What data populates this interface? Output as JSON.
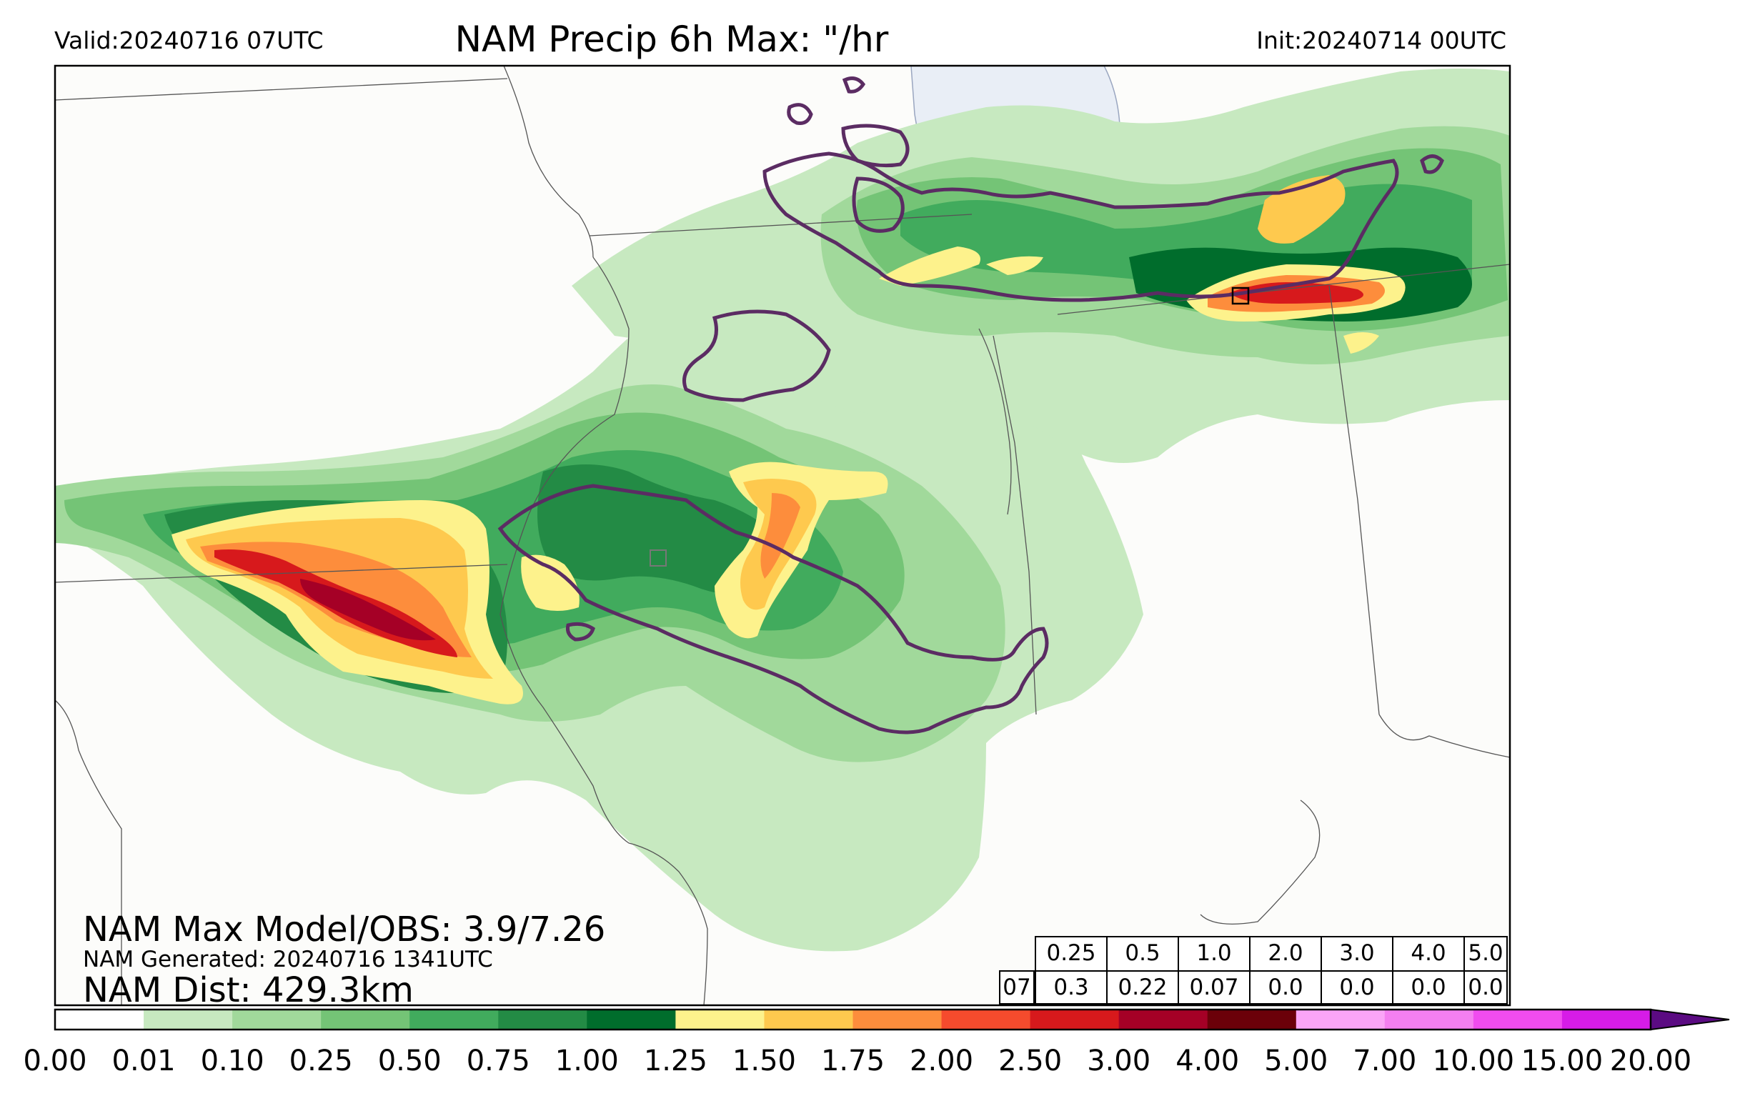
{
  "header": {
    "valid": "Valid:20240716 07UTC",
    "title": "NAM Precip 6h Max: \"/hr",
    "init": "Init:20240714 00UTC"
  },
  "info": {
    "max_model_obs": "NAM Max Model/OBS: 3.9/7.26",
    "generated": "NAM Generated: 20240716 1341UTC",
    "dist": "NAM Dist: 429.3km"
  },
  "threshold_table": {
    "hour": "07",
    "thresholds": [
      "0.25",
      "0.5",
      "1.0",
      "2.0",
      "3.0",
      "4.0",
      "5.0"
    ],
    "values": [
      "0.3",
      "0.22",
      "0.07",
      "0.0",
      "0.0",
      "0.0",
      "0.0"
    ]
  },
  "colorbar": {
    "ticks": [
      "0.00",
      "0.01",
      "0.10",
      "0.25",
      "0.50",
      "0.75",
      "1.00",
      "1.25",
      "1.50",
      "1.75",
      "2.00",
      "2.50",
      "3.00",
      "4.00",
      "5.00",
      "7.00",
      "10.00",
      "15.00",
      "20.00"
    ],
    "colors": [
      "#ffffff",
      "#c7e9c0",
      "#a1d99b",
      "#74c476",
      "#41ab5d",
      "#238b45",
      "#006d2c",
      "#fdf28c",
      "#fec94e",
      "#fd8d3c",
      "#f54b2d",
      "#d7191c",
      "#a50026",
      "#6b0009",
      "#fba5f7",
      "#f47ff0",
      "#f04cef",
      "#d61ce7",
      "#8d0dc8",
      "#5b0b82"
    ]
  },
  "colors": {
    "map_bg": "#fcfcfa",
    "border": "#000000",
    "contour": "#5b2c63",
    "lake": "#e9eef6"
  }
}
